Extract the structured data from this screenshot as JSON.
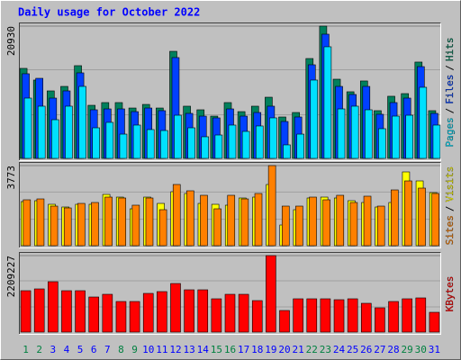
{
  "chart_data": [
    {
      "type": "bar",
      "title": "Daily usage for October 2022",
      "ylim": [
        0,
        20930
      ],
      "yticks": [
        20930
      ],
      "legend_separator": "/",
      "series": [
        {
          "name": "Pages",
          "color": "#00e0ff",
          "values": [
            9540,
            8260,
            6120,
            8260,
            11390,
            4840,
            5700,
            3840,
            5270,
            4560,
            4410,
            6830,
            4840,
            3420,
            3700,
            5270,
            4270,
            5130,
            6410,
            2140,
            3840,
            12390,
            17660,
            7830,
            8260,
            7690,
            4700,
            6690,
            6830,
            11250,
            5270
          ]
        },
        {
          "name": "Files",
          "color": "#0040ff",
          "values": [
            13390,
            12670,
            9540,
            10680,
            13530,
            7690,
            7830,
            7830,
            7400,
            7970,
            7550,
            15950,
            7120,
            6690,
            6410,
            7830,
            6690,
            7260,
            8260,
            5840,
            6550,
            14810,
            19650,
            11390,
            10110,
            11390,
            6980,
            8830,
            9540,
            14520,
            7120
          ]
        },
        {
          "name": "Hits",
          "color": "#00805c",
          "values": [
            14240,
            12390,
            10680,
            11390,
            14670,
            8400,
            8830,
            8830,
            7970,
            8540,
            7970,
            16940,
            8260,
            7690,
            6690,
            8830,
            7400,
            8260,
            9680,
            6550,
            7260,
            15800,
            20930,
            12530,
            10540,
            12250,
            7550,
            9830,
            10250,
            15240,
            7550
          ]
        }
      ]
    },
    {
      "type": "bar",
      "ylim": [
        0,
        3773
      ],
      "yticks": [
        3773
      ],
      "legend_separator": "/",
      "series": [
        {
          "name": "Sites",
          "color": "#ff8000",
          "values": [
            2162,
            2204,
            1865,
            1780,
            1992,
            2035,
            2289,
            2247,
            1908,
            2247,
            1696,
            2883,
            2586,
            2374,
            1738,
            2374,
            2204,
            2459,
            3773,
            1865,
            1865,
            2289,
            2162,
            2374,
            2035,
            2332,
            1865,
            2628,
            3052,
            2713,
            2459
          ]
        },
        {
          "name": "Visits",
          "color": "#ffff00",
          "values": [
            2077,
            2120,
            1950,
            1823,
            1950,
            1950,
            2416,
            2289,
            1738,
            2289,
            1992,
            2544,
            2459,
            1992,
            1950,
            1908,
            2247,
            2289,
            2883,
            975,
            1696,
            2247,
            2289,
            2247,
            2120,
            2035,
            1823,
            2035,
            3476,
            3052,
            2501
          ]
        }
      ]
    },
    {
      "type": "bar",
      "ylim": [
        0,
        2209227
      ],
      "yticks": [
        2209227
      ],
      "categories": [
        "1",
        "2",
        "3",
        "4",
        "5",
        "6",
        "7",
        "8",
        "9",
        "10",
        "11",
        "12",
        "13",
        "14",
        "15",
        "16",
        "17",
        "18",
        "19",
        "20",
        "21",
        "22",
        "23",
        "24",
        "25",
        "26",
        "27",
        "28",
        "29",
        "30",
        "31"
      ],
      "category_colors": [
        "#008040",
        "#008040",
        "#0000ff",
        "#0000ff",
        "#0000ff",
        "#0000ff",
        "#0000ff",
        "#008040",
        "#008040",
        "#0000ff",
        "#0000ff",
        "#0000ff",
        "#0000ff",
        "#0000ff",
        "#008040",
        "#008040",
        "#0000ff",
        "#0000ff",
        "#0000ff",
        "#0000ff",
        "#0000ff",
        "#008040",
        "#008040",
        "#0000ff",
        "#0000ff",
        "#0000ff",
        "#0000ff",
        "#0000ff",
        "#008040",
        "#008040",
        "#0000ff"
      ],
      "series": [
        {
          "name": "KBytes",
          "color": "#ff0000",
          "values": [
            1195590,
            1247570,
            1455500,
            1195590,
            1195590,
            1013650,
            1091620,
            883690,
            883690,
            1117610,
            1169590,
            1403510,
            1221580,
            1221580,
            961670,
            1091620,
            1091620,
            909690,
            2209227,
            623780,
            961670,
            961670,
            961670,
            935680,
            961670,
            831710,
            701760,
            883690,
            961670,
            987660,
            571800
          ]
        }
      ]
    }
  ]
}
